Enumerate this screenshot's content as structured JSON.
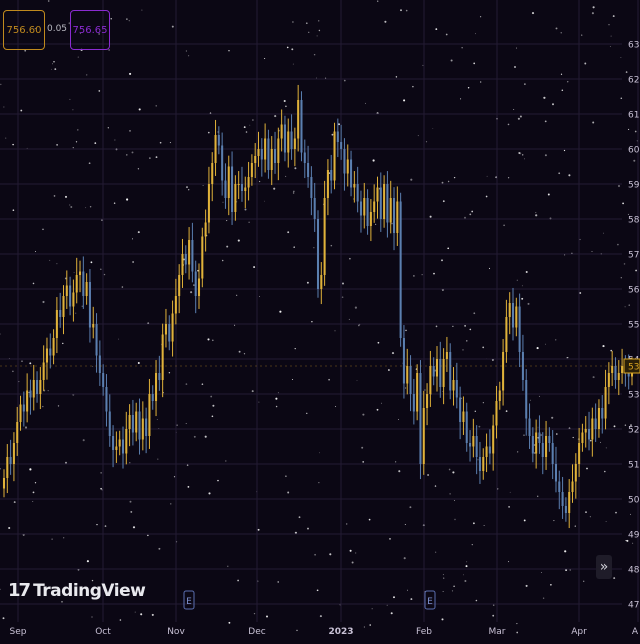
{
  "header": {
    "bid": "756.60",
    "spread": "0.05",
    "ask": "756.65"
  },
  "branding": {
    "logo_text": "TradingView",
    "logo_mark": "17"
  },
  "controls": {
    "scroll_icon": "double-chevron-right-icon"
  },
  "colors": {
    "background": "#0b0714",
    "up_candle": "#e0b23a",
    "down_candle": "#5b7fb0",
    "grid": "#231b33",
    "axis_text": "#c9c2d6",
    "last_price": "#d9a420"
  },
  "chart_data": {
    "type": "candlestick",
    "x_ticks": [
      "Sep",
      "Oct",
      "Nov",
      "Dec",
      "2023",
      "Feb",
      "Mar",
      "Apr",
      "A"
    ],
    "y_ticks": [
      "63",
      "62",
      "61",
      "60",
      "59",
      "58",
      "57",
      "56",
      "55",
      "54",
      "53",
      "52",
      "51",
      "50",
      "49",
      "48",
      "47"
    ],
    "last_price_label": "53",
    "ylim": [
      47,
      63
    ],
    "grid": true,
    "event_markers": [
      "E",
      "E"
    ],
    "close": [
      50.6,
      51.2,
      51.0,
      51.6,
      52.2,
      52.7,
      52.5,
      53.1,
      52.9,
      53.4,
      53.0,
      53.4,
      53.9,
      54.3,
      54.1,
      54.6,
      55.4,
      55.2,
      55.8,
      56.1,
      55.5,
      55.9,
      56.4,
      56.5,
      55.8,
      56.2,
      54.9,
      55.0,
      54.1,
      53.6,
      53.2,
      52.5,
      51.8,
      51.4,
      51.5,
      51.7,
      51.3,
      52.0,
      52.4,
      51.9,
      52.5,
      51.7,
      52.3,
      51.8,
      53.0,
      52.8,
      53.6,
      53.4,
      54.7,
      55.0,
      54.5,
      55.3,
      55.8,
      56.4,
      57.0,
      56.7,
      57.4,
      56.5,
      55.8,
      56.3,
      57.5,
      57.9,
      59.0,
      59.6,
      60.4,
      60.1,
      59.1,
      58.6,
      59.5,
      58.2,
      59.0,
      59.0,
      58.8,
      58.9,
      59.2,
      59.6,
      59.8,
      60.0,
      59.7,
      60.3,
      59.4,
      60.0,
      59.6,
      60.3,
      60.7,
      59.9,
      60.5,
      60.0,
      60.3,
      61.4,
      59.9,
      59.6,
      59.2,
      58.6,
      58.0,
      56.0,
      56.4,
      58.6,
      59.4,
      59.1,
      60.5,
      60.2,
      60.0,
      59.3,
      59.7,
      58.9,
      59.0,
      58.5,
      58.1,
      58.6,
      57.8,
      58.2,
      58.5,
      58.9,
      58.0,
      59.0,
      57.9,
      58.6,
      57.6,
      58.5,
      54.6,
      53.3,
      53.8,
      53.0,
      52.5,
      53.6,
      51.0,
      52.6,
      53.0,
      53.8,
      53.5,
      54.0,
      53.2,
      54.0,
      54.2,
      53.1,
      53.4,
      52.9,
      52.2,
      52.5,
      51.6,
      51.5,
      51.8,
      51.2,
      50.8,
      51.2,
      51.5,
      51.3,
      52.1,
      52.8,
      53.1,
      54.2,
      55.2,
      55.6,
      54.9,
      55.5,
      54.2,
      53.4,
      52.3,
      51.8,
      51.3,
      51.9,
      51.6,
      51.2,
      51.8,
      51.6,
      51.0,
      50.5,
      50.2,
      49.8,
      49.6,
      50.2,
      50.5,
      51.0,
      51.6,
      51.9,
      52.0,
      51.7,
      52.3,
      52.0,
      52.6,
      52.3,
      53.2,
      53.6,
      53.8,
      53.4,
      53.6,
      53.8,
      53.7,
      53.5,
      53.8
    ]
  }
}
